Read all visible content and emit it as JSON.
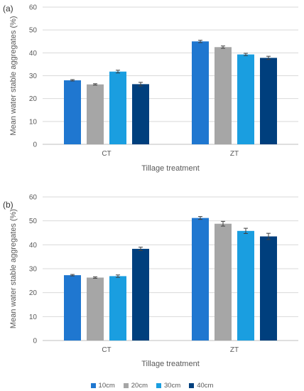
{
  "chart_data": [
    {
      "type": "bar",
      "panel_label": "(a)",
      "categories": [
        "CT",
        "ZT"
      ],
      "series": [
        {
          "name": "10cm",
          "values": [
            28.0,
            45.0
          ],
          "errors": [
            0.3,
            0.5
          ],
          "color": "#1f77d0"
        },
        {
          "name": "20cm",
          "values": [
            26.2,
            42.5
          ],
          "errors": [
            0.3,
            0.5
          ],
          "color": "#a6a6a6"
        },
        {
          "name": "30cm",
          "values": [
            31.8,
            39.3
          ],
          "errors": [
            0.6,
            0.5
          ],
          "color": "#1a9ee0"
        },
        {
          "name": "40cm",
          "values": [
            26.3,
            37.8
          ],
          "errors": [
            0.8,
            0.7
          ],
          "color": "#003f7d"
        }
      ],
      "yticks": [
        0,
        10,
        20,
        30,
        40,
        50,
        60
      ],
      "ylim": [
        0,
        60
      ],
      "xlabel": "Tillage treatment",
      "ylabel": "Mean water stable aggregates (%)",
      "grid": true
    },
    {
      "type": "bar",
      "panel_label": "(b)",
      "categories": [
        "CT",
        "ZT"
      ],
      "series": [
        {
          "name": "10cm",
          "values": [
            27.3,
            51.2
          ],
          "errors": [
            0.3,
            0.6
          ],
          "color": "#1f77d0"
        },
        {
          "name": "20cm",
          "values": [
            26.3,
            48.8
          ],
          "errors": [
            0.3,
            1.0
          ],
          "color": "#a6a6a6"
        },
        {
          "name": "30cm",
          "values": [
            26.9,
            45.8
          ],
          "errors": [
            0.5,
            1.1
          ],
          "color": "#1a9ee0"
        },
        {
          "name": "40cm",
          "values": [
            38.3,
            43.5
          ],
          "errors": [
            0.7,
            1.3
          ],
          "color": "#003f7d"
        }
      ],
      "yticks": [
        0,
        10,
        20,
        30,
        40,
        50,
        60
      ],
      "ylim": [
        0,
        60
      ],
      "xlabel": "Tillage treatment",
      "ylabel": "Mean water stable aggregates (%)",
      "grid": true,
      "legend_position": "bottom"
    }
  ]
}
